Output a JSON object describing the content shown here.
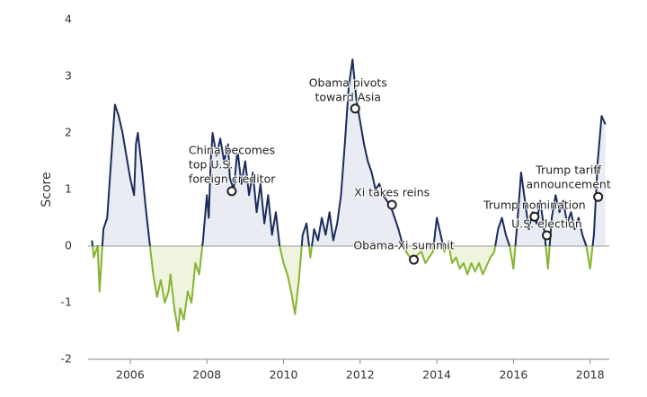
{
  "chart_data": {
    "type": "line",
    "y_label": "Score",
    "x": [
      2005.0,
      2005.05,
      2005.15,
      2005.2,
      2005.3,
      2005.4,
      2005.5,
      2005.6,
      2005.7,
      2005.8,
      2005.9,
      2006.0,
      2006.1,
      2006.15,
      2006.2,
      2006.3,
      2006.4,
      2006.5,
      2006.6,
      2006.7,
      2006.8,
      2006.9,
      2007.0,
      2007.05,
      2007.15,
      2007.25,
      2007.3,
      2007.4,
      2007.5,
      2007.6,
      2007.7,
      2007.8,
      2007.9,
      2008.0,
      2008.05,
      2008.1,
      2008.15,
      2008.25,
      2008.35,
      2008.45,
      2008.55,
      2008.6,
      2008.7,
      2008.8,
      2008.9,
      2009.0,
      2009.1,
      2009.2,
      2009.3,
      2009.4,
      2009.5,
      2009.6,
      2009.7,
      2009.8,
      2009.9,
      2010.0,
      2010.1,
      2010.2,
      2010.3,
      2010.4,
      2010.5,
      2010.6,
      2010.7,
      2010.8,
      2010.9,
      2011.0,
      2011.1,
      2011.2,
      2011.3,
      2011.4,
      2011.5,
      2011.6,
      2011.7,
      2011.8,
      2011.9,
      2012.0,
      2012.1,
      2012.2,
      2012.3,
      2012.4,
      2012.5,
      2012.6,
      2012.7,
      2012.8,
      2012.9,
      2013.0,
      2013.1,
      2013.2,
      2013.3,
      2013.4,
      2013.5,
      2013.6,
      2013.7,
      2013.8,
      2013.9,
      2014.0,
      2014.1,
      2014.2,
      2014.3,
      2014.4,
      2014.5,
      2014.6,
      2014.7,
      2014.8,
      2014.9,
      2015.0,
      2015.1,
      2015.2,
      2015.3,
      2015.4,
      2015.5,
      2015.6,
      2015.7,
      2015.8,
      2015.9,
      2016.0,
      2016.1,
      2016.2,
      2016.3,
      2016.4,
      2016.5,
      2016.6,
      2016.7,
      2016.8,
      2016.9,
      2017.0,
      2017.1,
      2017.2,
      2017.3,
      2017.4,
      2017.5,
      2017.6,
      2017.7,
      2017.8,
      2017.9,
      2018.0,
      2018.1,
      2018.2,
      2018.3,
      2018.4
    ],
    "values": [
      0.1,
      -0.2,
      0.0,
      -0.8,
      0.3,
      0.5,
      1.5,
      2.5,
      2.3,
      2.0,
      1.6,
      1.2,
      0.9,
      1.8,
      2.0,
      1.4,
      0.7,
      0.1,
      -0.5,
      -0.9,
      -0.6,
      -1.0,
      -0.8,
      -0.5,
      -1.1,
      -1.5,
      -1.1,
      -1.3,
      -0.8,
      -1.0,
      -0.3,
      -0.5,
      0.1,
      0.9,
      0.5,
      1.5,
      2.0,
      1.6,
      1.9,
      1.5,
      1.8,
      1.2,
      1.0,
      1.7,
      1.1,
      1.5,
      0.9,
      1.3,
      0.6,
      1.1,
      0.4,
      0.9,
      0.2,
      0.6,
      0.0,
      -0.3,
      -0.5,
      -0.8,
      -1.2,
      -0.6,
      0.2,
      0.4,
      -0.2,
      0.3,
      0.1,
      0.5,
      0.2,
      0.6,
      0.1,
      0.4,
      0.9,
      1.8,
      2.8,
      3.3,
      2.6,
      2.2,
      1.8,
      1.5,
      1.3,
      1.0,
      1.1,
      0.9,
      0.8,
      0.7,
      0.5,
      0.3,
      0.05,
      -0.1,
      -0.2,
      -0.25,
      -0.15,
      -0.1,
      -0.3,
      -0.2,
      -0.1,
      0.5,
      0.2,
      -0.1,
      0.05,
      -0.3,
      -0.2,
      -0.4,
      -0.3,
      -0.5,
      -0.3,
      -0.45,
      -0.3,
      -0.5,
      -0.35,
      -0.2,
      -0.1,
      0.3,
      0.5,
      0.2,
      0.0,
      -0.4,
      0.4,
      1.3,
      0.8,
      0.3,
      0.6,
      0.4,
      0.8,
      0.3,
      -0.4,
      0.5,
      0.9,
      0.6,
      0.8,
      0.4,
      0.6,
      0.3,
      0.5,
      0.2,
      0.0,
      -0.4,
      0.2,
      1.5,
      2.3,
      2.15
    ],
    "positive_color": "#1b2b5c",
    "negative_color": "#86b431",
    "positive_fill": "#e9edf3",
    "negative_fill": "#eef4dd",
    "xlim": [
      2004.9,
      2018.5
    ],
    "xticks": [
      2006,
      2008,
      2010,
      2012,
      2014,
      2016,
      2018
    ],
    "ylim": [
      -2,
      4
    ],
    "yticks": [
      -2,
      -1,
      0,
      1,
      2,
      3,
      4
    ],
    "zero_line": true,
    "annotations": [
      {
        "lines": [
          "China becomes",
          "top U.S.",
          "foreign creditor"
        ],
        "x": 2008.65,
        "y": 0.97
      },
      {
        "lines": [
          "Obama pivots",
          "toward Asia"
        ],
        "x": 2011.87,
        "y": 2.43
      },
      {
        "lines": [
          "Xi takes reins"
        ],
        "x": 2012.83,
        "y": 0.73
      },
      {
        "lines": [
          "Obama-Xi summit"
        ],
        "x": 2013.4,
        "y": -0.24
      },
      {
        "lines": [
          "Trump nomination"
        ],
        "x": 2016.55,
        "y": 0.52
      },
      {
        "lines": [
          "U.S. election"
        ],
        "x": 2016.87,
        "y": 0.19
      },
      {
        "lines": [
          "Trump tariff",
          "announcement"
        ],
        "x": 2018.21,
        "y": 0.87
      }
    ]
  }
}
